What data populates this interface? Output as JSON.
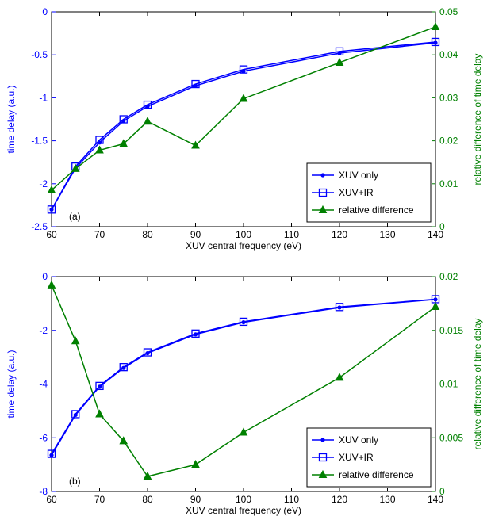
{
  "colors": {
    "xuv_only": "#0000ff",
    "xuv_ir": "#0000ff",
    "relative_difference": "#008000",
    "left_axis": "#0000ff",
    "right_axis": "#008000",
    "axes": "#000000"
  },
  "chart_data": [
    {
      "type": "line",
      "panel_label": "(a)",
      "xlabel": "XUV central frequency (eV)",
      "ylabel": "time delay (a.u.)",
      "y2label": "relative difference of time delay",
      "xlim": [
        60,
        140
      ],
      "ylim": [
        -2.5,
        0
      ],
      "y2lim": [
        0,
        0.05
      ],
      "x_ticks": [
        "60",
        "70",
        "80",
        "90",
        "100",
        "110",
        "120",
        "130",
        "140"
      ],
      "y_ticks": [
        "-2.5",
        "-2",
        "-1.5",
        "-1",
        "-0.5",
        "0"
      ],
      "y2_ticks": [
        "0",
        "0.01",
        "0.02",
        "0.03",
        "0.04",
        "0.05"
      ],
      "legend_position": "lower-right",
      "grid": false,
      "series": [
        {
          "name": "XUV only",
          "axis": "left",
          "marker": "dot",
          "x": [
            60,
            65,
            70,
            75,
            80,
            90,
            100,
            120,
            140
          ],
          "y": [
            -2.3,
            -1.82,
            -1.52,
            -1.27,
            -1.1,
            -0.86,
            -0.69,
            -0.48,
            -0.36
          ]
        },
        {
          "name": "XUV+IR",
          "axis": "left",
          "marker": "square",
          "x": [
            60,
            65,
            70,
            75,
            80,
            90,
            100,
            120,
            140
          ],
          "y": [
            -2.3,
            -1.8,
            -1.49,
            -1.25,
            -1.08,
            -0.84,
            -0.67,
            -0.46,
            -0.35
          ]
        },
        {
          "name": "relative difference",
          "axis": "right",
          "marker": "triangle",
          "x": [
            60,
            65,
            70,
            75,
            80,
            90,
            100,
            120,
            140
          ],
          "y": [
            0.0085,
            0.0135,
            0.0178,
            0.0193,
            0.0245,
            0.0189,
            0.0298,
            0.0382,
            0.0465
          ]
        }
      ]
    },
    {
      "type": "line",
      "panel_label": "(b)",
      "xlabel": "XUV central frequency (eV)",
      "ylabel": "time delay (a.u.)",
      "y2label": "relative difference of time delay",
      "xlim": [
        60,
        140
      ],
      "ylim": [
        -8,
        0
      ],
      "y2lim": [
        0,
        0.02
      ],
      "x_ticks": [
        "60",
        "70",
        "80",
        "90",
        "100",
        "110",
        "120",
        "130",
        "140"
      ],
      "y_ticks": [
        "-8",
        "-6",
        "-4",
        "-2",
        "0"
      ],
      "y2_ticks": [
        "0",
        "0.005",
        "0.01",
        "0.015",
        "0.02"
      ],
      "legend_position": "lower-right",
      "grid": false,
      "series": [
        {
          "name": "XUV only",
          "axis": "left",
          "marker": "dot",
          "x": [
            60,
            65,
            70,
            75,
            80,
            90,
            100,
            120,
            140
          ],
          "y": [
            -6.65,
            -5.15,
            -4.1,
            -3.4,
            -2.85,
            -2.15,
            -1.7,
            -1.15,
            -0.85
          ]
        },
        {
          "name": "XUV+IR",
          "axis": "left",
          "marker": "square",
          "x": [
            60,
            65,
            70,
            75,
            80,
            90,
            100,
            120,
            140
          ],
          "y": [
            -6.6,
            -5.12,
            -4.07,
            -3.37,
            -2.82,
            -2.12,
            -1.68,
            -1.13,
            -0.84
          ]
        },
        {
          "name": "relative difference",
          "axis": "right",
          "marker": "triangle",
          "x": [
            60,
            65,
            70,
            75,
            80,
            90,
            100,
            120,
            140
          ],
          "y": [
            0.0192,
            0.014,
            0.0072,
            0.0047,
            0.0014,
            0.0025,
            0.0055,
            0.0106,
            0.0172
          ]
        }
      ]
    }
  ]
}
